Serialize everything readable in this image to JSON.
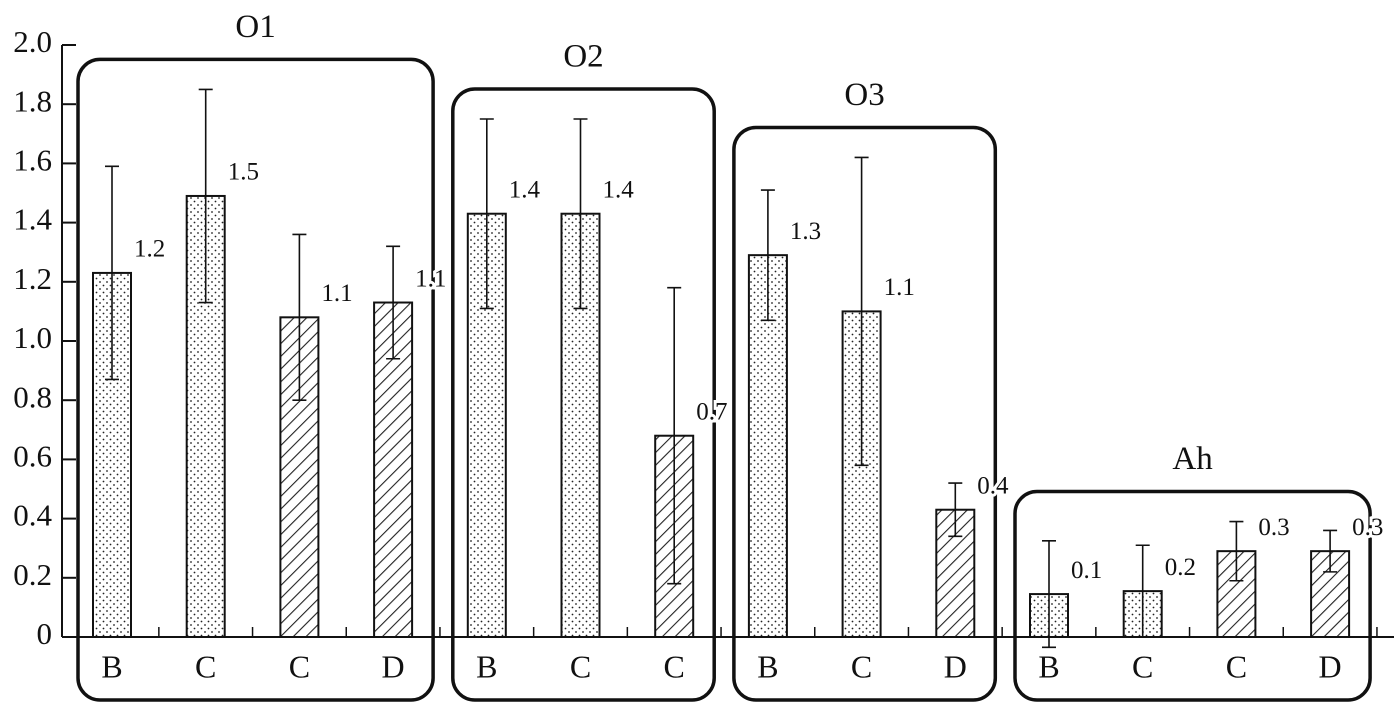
{
  "chart_data": {
    "type": "bar",
    "ylim": [
      0,
      2.0
    ],
    "yticks": [
      0,
      0.2,
      0.4,
      0.6,
      0.8,
      {
        "value": 1.0,
        "label": "1.0"
      },
      1.2,
      1.4,
      1.6,
      1.8,
      {
        "value": 2.0,
        "label": "2.0"
      }
    ],
    "groups": [
      {
        "name": "O1",
        "categories": [
          "B",
          "C",
          "C",
          "D"
        ],
        "values": [
          1.23,
          1.49,
          1.08,
          1.13
        ],
        "errors": [
          0.36,
          0.36,
          0.28,
          0.19
        ],
        "value_labels": [
          "1.2",
          "1.5",
          "1.1",
          "1.1"
        ],
        "patterns": [
          "dots",
          "dots",
          "hatch",
          "hatch"
        ]
      },
      {
        "name": "O2",
        "categories": [
          "B",
          "C",
          "C"
        ],
        "values": [
          1.43,
          1.43,
          0.68
        ],
        "errors": [
          0.32,
          0.32,
          0.5
        ],
        "value_labels": [
          "1.4",
          "1.4",
          "0.7"
        ],
        "patterns": [
          "dots",
          "dots",
          "hatch"
        ]
      },
      {
        "name": "O3",
        "categories": [
          "B",
          "C",
          "D"
        ],
        "values": [
          1.29,
          1.1,
          0.43
        ],
        "errors": [
          0.22,
          0.52,
          0.09
        ],
        "value_labels": [
          "1.3",
          "1.1",
          "0.4"
        ],
        "patterns": [
          "dots",
          "dots",
          "hatch"
        ]
      },
      {
        "name": "Ah",
        "categories": [
          "B",
          "C",
          "C",
          "D"
        ],
        "values": [
          0.145,
          0.155,
          0.29,
          0.29
        ],
        "errors": [
          0.18,
          0.155,
          0.1,
          0.07
        ],
        "value_labels": [
          "0.1",
          "0.2",
          "0.3",
          "0.3"
        ],
        "patterns": [
          "dots",
          "dots",
          "hatch",
          "hatch"
        ]
      }
    ]
  }
}
